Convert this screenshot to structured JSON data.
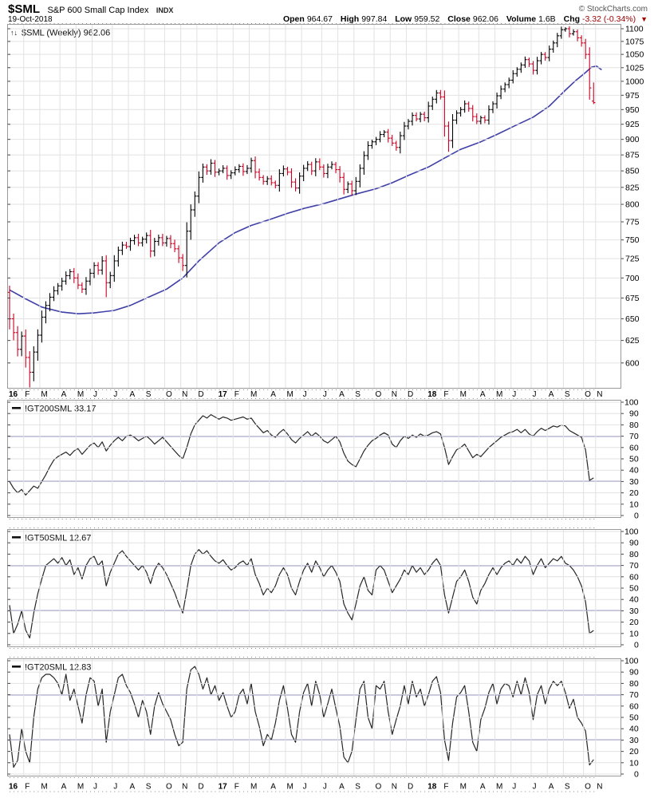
{
  "header": {
    "symbol": "$SML",
    "name": "S&P 600 Small Cap Index",
    "exchange": "INDX",
    "copyright": "© StockCharts.com",
    "date": "19-Oct-2018",
    "quote": {
      "open_label": "Open",
      "open": "964.67",
      "high_label": "High",
      "high": "997.84",
      "low_label": "Low",
      "low": "959.52",
      "close_label": "Close",
      "close": "962.06",
      "volume_label": "Volume",
      "volume": "1.6B",
      "chg_label": "Chg",
      "chg": "-3.32 (-0.34%)",
      "chg_arrow": "▼"
    }
  },
  "colors": {
    "up_bar": "#000000",
    "down_bar": "#cc0022",
    "ma_line": "#3f3fa8",
    "indicator_line": "#262626",
    "hline": "#000080",
    "grid": "#e2e2e2",
    "frame": "#9a9a9a",
    "tick": "#444444",
    "chg_red": "#a00000"
  },
  "chart_data": {
    "type": "ohlc",
    "timeframe": "Weekly, Jan 2016 - 19 Oct 2018",
    "x_month_labels": [
      "16",
      "F",
      "M",
      "A",
      "M",
      "J",
      "J",
      "A",
      "S",
      "O",
      "N",
      "D",
      "17",
      "F",
      "M",
      "A",
      "M",
      "J",
      "J",
      "A",
      "S",
      "O",
      "N",
      "D",
      "18",
      "F",
      "M",
      "A",
      "M",
      "J",
      "J",
      "A",
      "S",
      "O",
      "N"
    ],
    "main": {
      "legend_icon": "↑↓",
      "legend": "$SML (Weekly) 962.06",
      "log_scale": true,
      "y_ticks": [
        1100,
        1075,
        1050,
        1025,
        1000,
        975,
        950,
        925,
        900,
        875,
        850,
        825,
        800,
        775,
        750,
        725,
        700,
        675,
        650,
        625,
        600
      ],
      "ylim": [
        571,
        1108
      ],
      "last_bar": {
        "open": 964.67,
        "high": 997.84,
        "low": 959.52,
        "close": 962.06
      },
      "weekly_closes_by_month": [
        [
          650,
          634,
          615,
          630
        ],
        [
          606,
          590,
          612,
          631
        ],
        [
          652,
          666,
          676,
          684,
          690
        ],
        [
          696,
          703,
          708,
          700
        ],
        [
          691,
          686,
          696,
          706
        ],
        [
          716,
          710,
          722,
          694,
          703
        ],
        [
          722,
          736,
          743,
          741
        ],
        [
          749,
          753,
          746,
          751
        ],
        [
          756,
          735,
          748,
          753,
          746
        ],
        [
          752,
          745,
          738,
          726
        ],
        [
          716,
          762,
          792,
          812
        ],
        [
          840,
          856,
          850,
          862,
          848
        ],
        [
          850,
          854,
          843,
          847
        ],
        [
          852,
          857,
          849,
          854
        ],
        [
          866,
          848,
          840,
          834,
          838
        ],
        [
          832,
          828,
          846,
          853
        ],
        [
          848,
          833,
          824,
          842
        ],
        [
          854,
          860,
          850,
          864,
          856
        ],
        [
          846,
          856,
          860,
          852
        ],
        [
          840,
          822,
          830,
          820
        ],
        [
          834,
          854,
          874,
          890,
          896
        ],
        [
          900,
          908,
          912,
          902
        ],
        [
          894,
          887,
          906,
          922
        ],
        [
          930,
          940,
          934,
          942,
          936
        ],
        [
          956,
          968,
          979,
          972
        ],
        [
          922,
          898,
          932,
          944
        ],
        [
          950,
          960,
          952,
          938,
          930
        ],
        [
          936,
          932,
          950,
          960
        ],
        [
          974,
          986,
          994,
          1002
        ],
        [
          1014,
          1022,
          1030,
          1040,
          1032
        ],
        [
          1020,
          1038,
          1050,
          1044
        ],
        [
          1060,
          1072,
          1086,
          1098
        ],
        [
          1100,
          1090,
          1094,
          1082,
          1072
        ],
        [
          1050,
          988,
          962.06
        ]
      ],
      "wick_overrides": {
        "5": {
          "low": 574
        },
        "24": {
          "low": 676
        },
        "109": {
          "low": 880
        }
      },
      "ma40_weekly_points": [
        [
          0,
          685
        ],
        [
          4,
          674
        ],
        [
          8,
          664
        ],
        [
          13,
          658
        ],
        [
          17,
          656
        ],
        [
          21,
          657
        ],
        [
          26,
          660
        ],
        [
          30,
          666
        ],
        [
          34,
          675
        ],
        [
          39,
          686
        ],
        [
          43,
          700
        ],
        [
          47,
          722
        ],
        [
          52,
          746
        ],
        [
          56,
          760
        ],
        [
          60,
          770
        ],
        [
          65,
          779
        ],
        [
          69,
          787
        ],
        [
          73,
          794
        ],
        [
          78,
          801
        ],
        [
          82,
          808
        ],
        [
          86,
          815
        ],
        [
          91,
          823
        ],
        [
          95,
          832
        ],
        [
          99,
          843
        ],
        [
          104,
          856
        ],
        [
          108,
          870
        ],
        [
          112,
          884
        ],
        [
          117,
          896
        ],
        [
          121,
          908
        ],
        [
          125,
          921
        ],
        [
          130,
          937
        ],
        [
          134,
          956
        ],
        [
          138,
          984
        ],
        [
          140.5,
          1001
        ],
        [
          143,
          1016
        ],
        [
          144.5,
          1026
        ],
        [
          145.7,
          1028
        ],
        [
          147,
          1021
        ]
      ]
    },
    "indicator_y_ticks": [
      100,
      90,
      80,
      70,
      60,
      50,
      40,
      30,
      20,
      10,
      0
    ],
    "indicators": [
      {
        "name": "!GT200SML",
        "value": 33.17,
        "legend": "!GT200SML 33.17",
        "hlines": [
          70,
          30
        ],
        "weekly_by_month": [
          [
            30,
            24,
            20,
            23
          ],
          [
            18,
            22,
            26,
            24
          ],
          [
            30,
            36,
            43,
            49,
            52
          ],
          [
            54,
            56,
            53,
            57
          ],
          [
            59,
            54,
            58,
            62
          ],
          [
            64,
            60,
            65,
            57,
            62
          ],
          [
            66,
            69,
            66,
            70
          ],
          [
            71,
            69,
            66,
            68
          ],
          [
            70,
            67,
            63,
            66,
            69
          ],
          [
            65,
            61,
            57,
            53
          ],
          [
            50,
            60,
            72,
            80
          ],
          [
            84,
            88,
            86,
            89,
            87
          ],
          [
            85,
            87,
            86,
            84
          ],
          [
            85,
            86,
            87,
            85
          ],
          [
            86,
            81,
            77,
            73,
            75
          ],
          [
            71,
            69,
            73,
            76
          ],
          [
            72,
            67,
            64,
            68
          ],
          [
            71,
            74,
            70,
            73,
            70
          ],
          [
            66,
            64,
            67,
            70
          ],
          [
            65,
            55,
            48,
            45
          ],
          [
            43,
            50,
            57,
            62,
            66
          ],
          [
            68,
            71,
            73,
            71
          ],
          [
            63,
            60,
            66,
            70
          ],
          [
            68,
            71,
            69,
            72,
            70
          ],
          [
            71,
            73,
            74,
            72
          ],
          [
            60,
            45,
            52,
            58
          ],
          [
            60,
            63,
            57,
            51,
            54
          ],
          [
            52,
            56,
            60,
            63
          ],
          [
            66,
            69,
            71,
            73
          ],
          [
            74,
            76,
            73,
            76,
            72
          ],
          [
            70,
            74,
            77,
            75
          ],
          [
            77,
            79,
            78,
            80
          ],
          [
            79,
            75,
            73,
            71,
            69
          ],
          [
            58,
            31,
            33.17
          ]
        ]
      },
      {
        "name": "!GT50SML",
        "value": 12.67,
        "legend": "!GT50SML 12.67",
        "hlines": [
          70,
          30
        ],
        "weekly_by_month": [
          [
            35,
            10,
            18,
            30
          ],
          [
            13,
            6,
            28,
            45
          ],
          [
            58,
            70,
            73,
            76,
            72
          ],
          [
            77,
            70,
            75,
            62
          ],
          [
            68,
            58,
            70,
            76
          ],
          [
            78,
            70,
            74,
            52,
            64
          ],
          [
            72,
            80,
            83,
            78
          ],
          [
            74,
            70,
            66,
            70
          ],
          [
            64,
            54,
            66,
            72,
            68
          ],
          [
            62,
            54,
            46,
            36
          ],
          [
            28,
            48,
            70,
            80
          ],
          [
            84,
            80,
            83,
            78,
            74
          ],
          [
            72,
            75,
            70,
            66
          ],
          [
            68,
            72,
            74,
            70
          ],
          [
            76,
            62,
            54,
            44,
            50
          ],
          [
            46,
            52,
            62,
            68
          ],
          [
            62,
            50,
            44,
            56
          ],
          [
            66,
            72,
            64,
            74,
            68
          ],
          [
            60,
            66,
            70,
            64
          ],
          [
            56,
            36,
            28,
            22
          ],
          [
            36,
            52,
            60,
            48,
            44
          ],
          [
            66,
            70,
            66,
            56
          ],
          [
            46,
            52,
            58,
            66
          ],
          [
            62,
            70,
            64,
            68,
            62
          ],
          [
            66,
            72,
            76,
            70
          ],
          [
            44,
            28,
            42,
            56
          ],
          [
            60,
            66,
            56,
            42,
            36
          ],
          [
            48,
            54,
            62,
            68
          ],
          [
            62,
            68,
            72,
            74
          ],
          [
            70,
            76,
            72,
            78,
            74
          ],
          [
            62,
            70,
            76,
            68
          ],
          [
            72,
            76,
            74,
            78
          ],
          [
            72,
            70,
            66,
            60,
            52
          ],
          [
            38,
            10,
            12.67
          ]
        ]
      },
      {
        "name": "!GT20SML",
        "value": 12.83,
        "legend": "!GT20SML 12.83",
        "hlines": [
          70,
          30
        ],
        "weekly_by_month": [
          [
            35,
            6,
            12,
            40
          ],
          [
            20,
            10,
            50,
            75
          ],
          [
            85,
            88,
            88,
            85,
            80
          ],
          [
            70,
            88,
            65,
            75
          ],
          [
            60,
            45,
            70,
            85
          ],
          [
            82,
            60,
            75,
            28,
            55
          ],
          [
            70,
            85,
            88,
            78
          ],
          [
            72,
            62,
            50,
            65
          ],
          [
            55,
            35,
            60,
            72,
            62
          ],
          [
            55,
            48,
            35,
            25
          ],
          [
            28,
            75,
            92,
            95
          ],
          [
            88,
            75,
            85,
            70,
            78
          ],
          [
            65,
            72,
            60,
            50
          ],
          [
            55,
            70,
            75,
            62
          ],
          [
            80,
            55,
            42,
            25,
            35
          ],
          [
            30,
            45,
            65,
            78
          ],
          [
            58,
            35,
            28,
            55
          ],
          [
            72,
            80,
            60,
            82,
            70
          ],
          [
            50,
            62,
            75,
            58
          ],
          [
            42,
            15,
            10,
            20
          ],
          [
            48,
            75,
            82,
            50,
            40
          ],
          [
            78,
            75,
            82,
            55
          ],
          [
            35,
            48,
            60,
            78
          ],
          [
            62,
            82,
            68,
            75,
            60
          ],
          [
            70,
            82,
            86,
            72
          ],
          [
            30,
            12,
            45,
            68
          ],
          [
            72,
            78,
            55,
            28,
            20
          ],
          [
            48,
            58,
            72,
            80
          ],
          [
            62,
            75,
            80,
            78
          ],
          [
            68,
            82,
            70,
            85,
            72
          ],
          [
            48,
            70,
            78,
            62
          ],
          [
            75,
            82,
            78,
            82
          ],
          [
            72,
            58,
            66,
            50,
            45
          ],
          [
            38,
            8,
            12.83
          ]
        ]
      }
    ]
  }
}
